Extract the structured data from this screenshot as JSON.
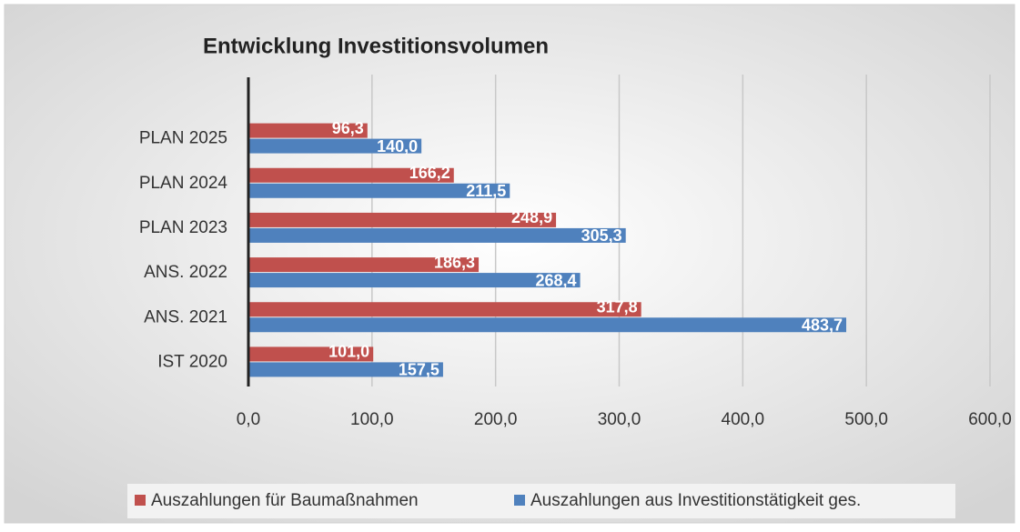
{
  "chart_data": {
    "type": "bar",
    "orientation": "horizontal",
    "title": "Entwicklung Investitionsvolumen",
    "categories": [
      "IST 2020",
      "ANS. 2021",
      "ANS. 2022",
      "PLAN 2023",
      "PLAN 2024",
      "PLAN 2025"
    ],
    "series": [
      {
        "name": "Auszahlungen für Baumaßnahmen",
        "color": "#c0504d",
        "values": [
          101.0,
          317.8,
          186.3,
          248.9,
          166.2,
          96.3
        ],
        "value_labels": [
          "101,0",
          "317,8",
          "186,3",
          "248,9",
          "166,2",
          "96,3"
        ]
      },
      {
        "name": "Auszahlungen aus Investitionstätigkeit ges.",
        "color": "#4f81bd",
        "values": [
          157.5,
          483.7,
          268.4,
          305.3,
          211.5,
          140.0
        ],
        "value_labels": [
          "157,5",
          "483,7",
          "268,4",
          "305,3",
          "211,5",
          "140,0"
        ]
      }
    ],
    "xlim": [
      0,
      600
    ],
    "xticks": [
      {
        "value": 0,
        "label": "0,0"
      },
      {
        "value": 100,
        "label": "100,0"
      },
      {
        "value": 200,
        "label": "200,0"
      },
      {
        "value": 300,
        "label": "300,0"
      },
      {
        "value": 400,
        "label": "400,0"
      },
      {
        "value": 500,
        "label": "500,0"
      },
      {
        "value": 600,
        "label": "600,0"
      }
    ],
    "grid": true,
    "legend": "bottom"
  }
}
